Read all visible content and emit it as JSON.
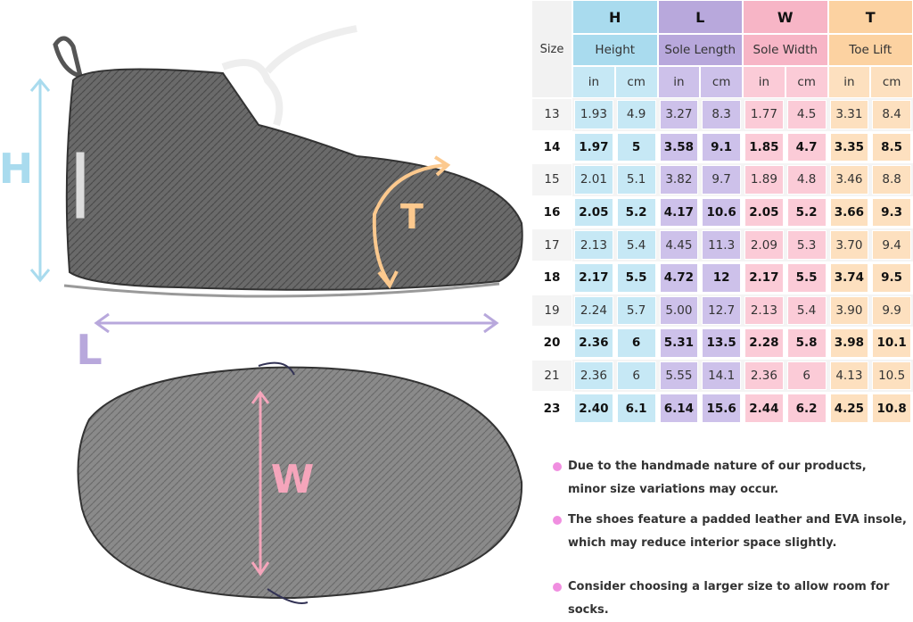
{
  "labels": {
    "height": "H",
    "length": "L",
    "toe": "T",
    "width": "W"
  },
  "table": {
    "size_header": "Size",
    "groups": [
      {
        "letter": "H",
        "name": "Height",
        "color": "#a9dbee",
        "cell_color": "#c6e8f5"
      },
      {
        "letter": "L",
        "name": "Sole Length",
        "color": "#b8a8dc",
        "cell_color": "#cdc1ea"
      },
      {
        "letter": "W",
        "name": "Sole Width",
        "color": "#f7b5c6",
        "cell_color": "#fbcbd7"
      },
      {
        "letter": "T",
        "name": "Toe Lift",
        "color": "#fcd2a1",
        "cell_color": "#fde0bf"
      }
    ],
    "units": [
      "in",
      "cm",
      "in",
      "cm",
      "in",
      "cm",
      "in",
      "cm"
    ],
    "rows": [
      [
        "13",
        "1.93",
        "4.9",
        "3.27",
        "8.3",
        "1.77",
        "4.5",
        "3.31",
        "8.4"
      ],
      [
        "14",
        "1.97",
        "5",
        "3.58",
        "9.1",
        "1.85",
        "4.7",
        "3.35",
        "8.5"
      ],
      [
        "15",
        "2.01",
        "5.1",
        "3.82",
        "9.7",
        "1.89",
        "4.8",
        "3.46",
        "8.8"
      ],
      [
        "16",
        "2.05",
        "5.2",
        "4.17",
        "10.6",
        "2.05",
        "5.2",
        "3.66",
        "9.3"
      ],
      [
        "17",
        "2.13",
        "5.4",
        "4.45",
        "11.3",
        "2.09",
        "5.3",
        "3.70",
        "9.4"
      ],
      [
        "18",
        "2.17",
        "5.5",
        "4.72",
        "12",
        "2.17",
        "5.5",
        "3.74",
        "9.5"
      ],
      [
        "19",
        "2.24",
        "5.7",
        "5.00",
        "12.7",
        "2.13",
        "5.4",
        "3.90",
        "9.9"
      ],
      [
        "20",
        "2.36",
        "6",
        "5.31",
        "13.5",
        "2.28",
        "5.8",
        "3.98",
        "10.1"
      ],
      [
        "21",
        "2.36",
        "6",
        "5.55",
        "14.1",
        "2.36",
        "6",
        "4.13",
        "10.5"
      ],
      [
        "23",
        "2.40",
        "6.1",
        "6.14",
        "15.6",
        "2.44",
        "6.2",
        "4.25",
        "10.8"
      ]
    ]
  },
  "notes": [
    [
      "Due to the handmade nature of our products,",
      "minor size variations may occur."
    ],
    [
      "The shoes feature a padded leather and EVA insole,",
      "which may reduce interior space slightly."
    ],
    [
      "Consider choosing a larger size to allow room for socks."
    ]
  ]
}
